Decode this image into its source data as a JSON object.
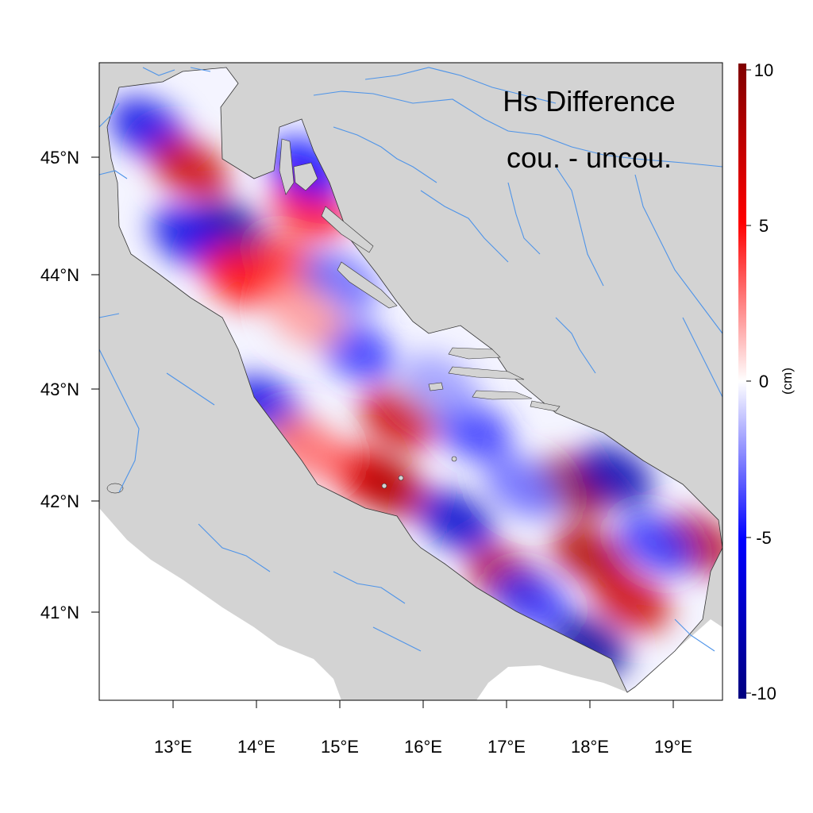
{
  "map": {
    "title_line1": "Hs Difference",
    "title_line2": "cou. - uncou.",
    "x_ticks": [
      "13°E",
      "14°E",
      "15°E",
      "16°E",
      "17°E",
      "18°E",
      "19°E"
    ],
    "y_ticks": [
      "45°N",
      "44°N",
      "43°N",
      "42°N",
      "41°N"
    ],
    "colors": {
      "land": "#d3d3d3",
      "sea_outside": "#ffffff",
      "river": "#4f94e8",
      "frame": "#000000"
    }
  },
  "colorbar": {
    "unit": "(cm)",
    "ticks": [
      "10",
      "5",
      "0",
      "-5",
      "-10"
    ],
    "range": [
      -10,
      10
    ],
    "colors": [
      "#00007f",
      "#0000ff",
      "#ffffff",
      "#ff0000",
      "#7f0000"
    ]
  },
  "field": {
    "blobs": [
      {
        "lon": 12.7,
        "lat": 45.25,
        "value": -6
      },
      {
        "lon": 13.2,
        "lat": 44.9,
        "value": 7
      },
      {
        "lon": 13.7,
        "lat": 44.35,
        "value": -9
      },
      {
        "lon": 13.2,
        "lat": 44.3,
        "value": -6
      },
      {
        "lon": 14.4,
        "lat": 44.05,
        "value": 4
      },
      {
        "lon": 13.8,
        "lat": 43.95,
        "value": 5
      },
      {
        "lon": 14.65,
        "lat": 44.55,
        "value": 5
      },
      {
        "lon": 14.6,
        "lat": 44.9,
        "value": -5
      },
      {
        "lon": 15.0,
        "lat": 43.9,
        "value": -3
      },
      {
        "lon": 15.2,
        "lat": 43.3,
        "value": -4
      },
      {
        "lon": 14.6,
        "lat": 43.6,
        "value": 2
      },
      {
        "lon": 15.7,
        "lat": 42.7,
        "value": 7
      },
      {
        "lon": 15.3,
        "lat": 42.2,
        "value": 5
      },
      {
        "lon": 15.6,
        "lat": 42.1,
        "value": 8
      },
      {
        "lon": 14.1,
        "lat": 42.8,
        "value": -6
      },
      {
        "lon": 14.6,
        "lat": 42.45,
        "value": 3
      },
      {
        "lon": 16.6,
        "lat": 42.6,
        "value": -4
      },
      {
        "lon": 16.4,
        "lat": 41.8,
        "value": -7
      },
      {
        "lon": 17.0,
        "lat": 41.3,
        "value": 8
      },
      {
        "lon": 17.8,
        "lat": 42.1,
        "value": 9
      },
      {
        "lon": 18.3,
        "lat": 42.2,
        "value": -8
      },
      {
        "lon": 18.0,
        "lat": 41.5,
        "value": 8
      },
      {
        "lon": 18.5,
        "lat": 41.1,
        "value": 7
      },
      {
        "lon": 18.0,
        "lat": 40.7,
        "value": -9
      },
      {
        "lon": 17.3,
        "lat": 41.1,
        "value": -4
      },
      {
        "lon": 19.3,
        "lat": 41.6,
        "value": 8
      },
      {
        "lon": 18.8,
        "lat": 41.6,
        "value": -4
      },
      {
        "lon": 16.2,
        "lat": 43.0,
        "value": -2
      },
      {
        "lon": 17.2,
        "lat": 42.1,
        "value": -3
      }
    ]
  }
}
